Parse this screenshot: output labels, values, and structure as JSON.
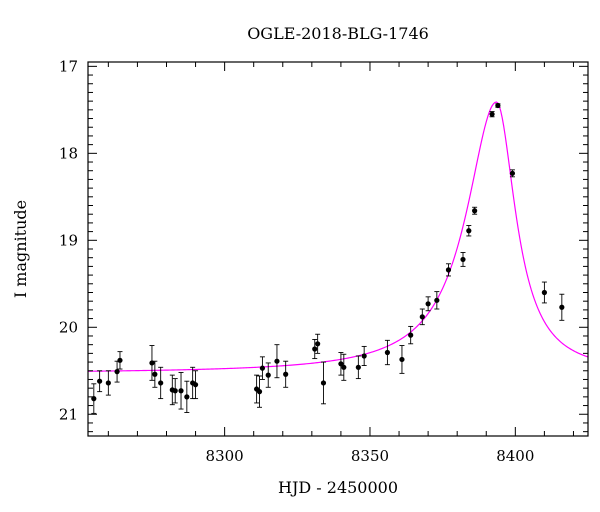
{
  "chart_data": {
    "type": "scatter",
    "title": "OGLE-2018-BLG-1746",
    "xlabel": "HJD - 2450000",
    "ylabel": "I magnitude",
    "xlim": [
      8253,
      8425
    ],
    "ylim": [
      21.25,
      16.95
    ],
    "y_inverted": true,
    "x_ticks": [
      8300,
      8350,
      8400
    ],
    "y_ticks": [
      17,
      18,
      19,
      20,
      21
    ],
    "grid": false,
    "colors": {
      "points": "#000000",
      "model": "#ff00ff",
      "axes": "#000000"
    },
    "series": [
      {
        "kind": "points_with_errorbars",
        "x": [
          8255,
          8257,
          8260,
          8263,
          8264,
          8275,
          8276,
          8278,
          8282,
          8283,
          8285,
          8287,
          8289,
          8290,
          8311,
          8312,
          8313,
          8315,
          8318,
          8321,
          8331,
          8332,
          8334,
          8340,
          8341,
          8346,
          8348,
          8356,
          8361,
          8364,
          8368,
          8370,
          8373,
          8377,
          8382,
          8384,
          8386,
          8392,
          8394,
          8399,
          8410,
          8416
        ],
        "y": [
          20.82,
          20.62,
          20.64,
          20.51,
          20.38,
          20.41,
          20.54,
          20.64,
          20.72,
          20.73,
          20.73,
          20.8,
          20.64,
          20.66,
          20.71,
          20.74,
          20.47,
          20.55,
          20.39,
          20.54,
          20.25,
          20.19,
          20.64,
          20.42,
          20.46,
          20.46,
          20.33,
          20.29,
          20.37,
          20.09,
          19.88,
          19.73,
          19.69,
          19.34,
          19.22,
          18.89,
          18.66,
          17.55,
          17.45,
          18.23,
          19.6,
          19.77
        ],
        "yerr": [
          0.17,
          0.12,
          0.14,
          0.12,
          0.1,
          0.2,
          0.15,
          0.18,
          0.17,
          0.14,
          0.21,
          0.18,
          0.18,
          0.16,
          0.16,
          0.18,
          0.13,
          0.14,
          0.19,
          0.15,
          0.11,
          0.11,
          0.24,
          0.13,
          0.15,
          0.13,
          0.11,
          0.14,
          0.16,
          0.1,
          0.09,
          0.08,
          0.1,
          0.07,
          0.08,
          0.06,
          0.04,
          0.03,
          0.02,
          0.04,
          0.12,
          0.15
        ]
      },
      {
        "kind": "model_curve",
        "model": {
          "baseline_mag": 20.53,
          "peak_mag": 17.41,
          "t0": 8393.5,
          "half_width_left": 12.5,
          "half_width_right": 8.0,
          "sample_step": 0.5
        }
      }
    ]
  }
}
